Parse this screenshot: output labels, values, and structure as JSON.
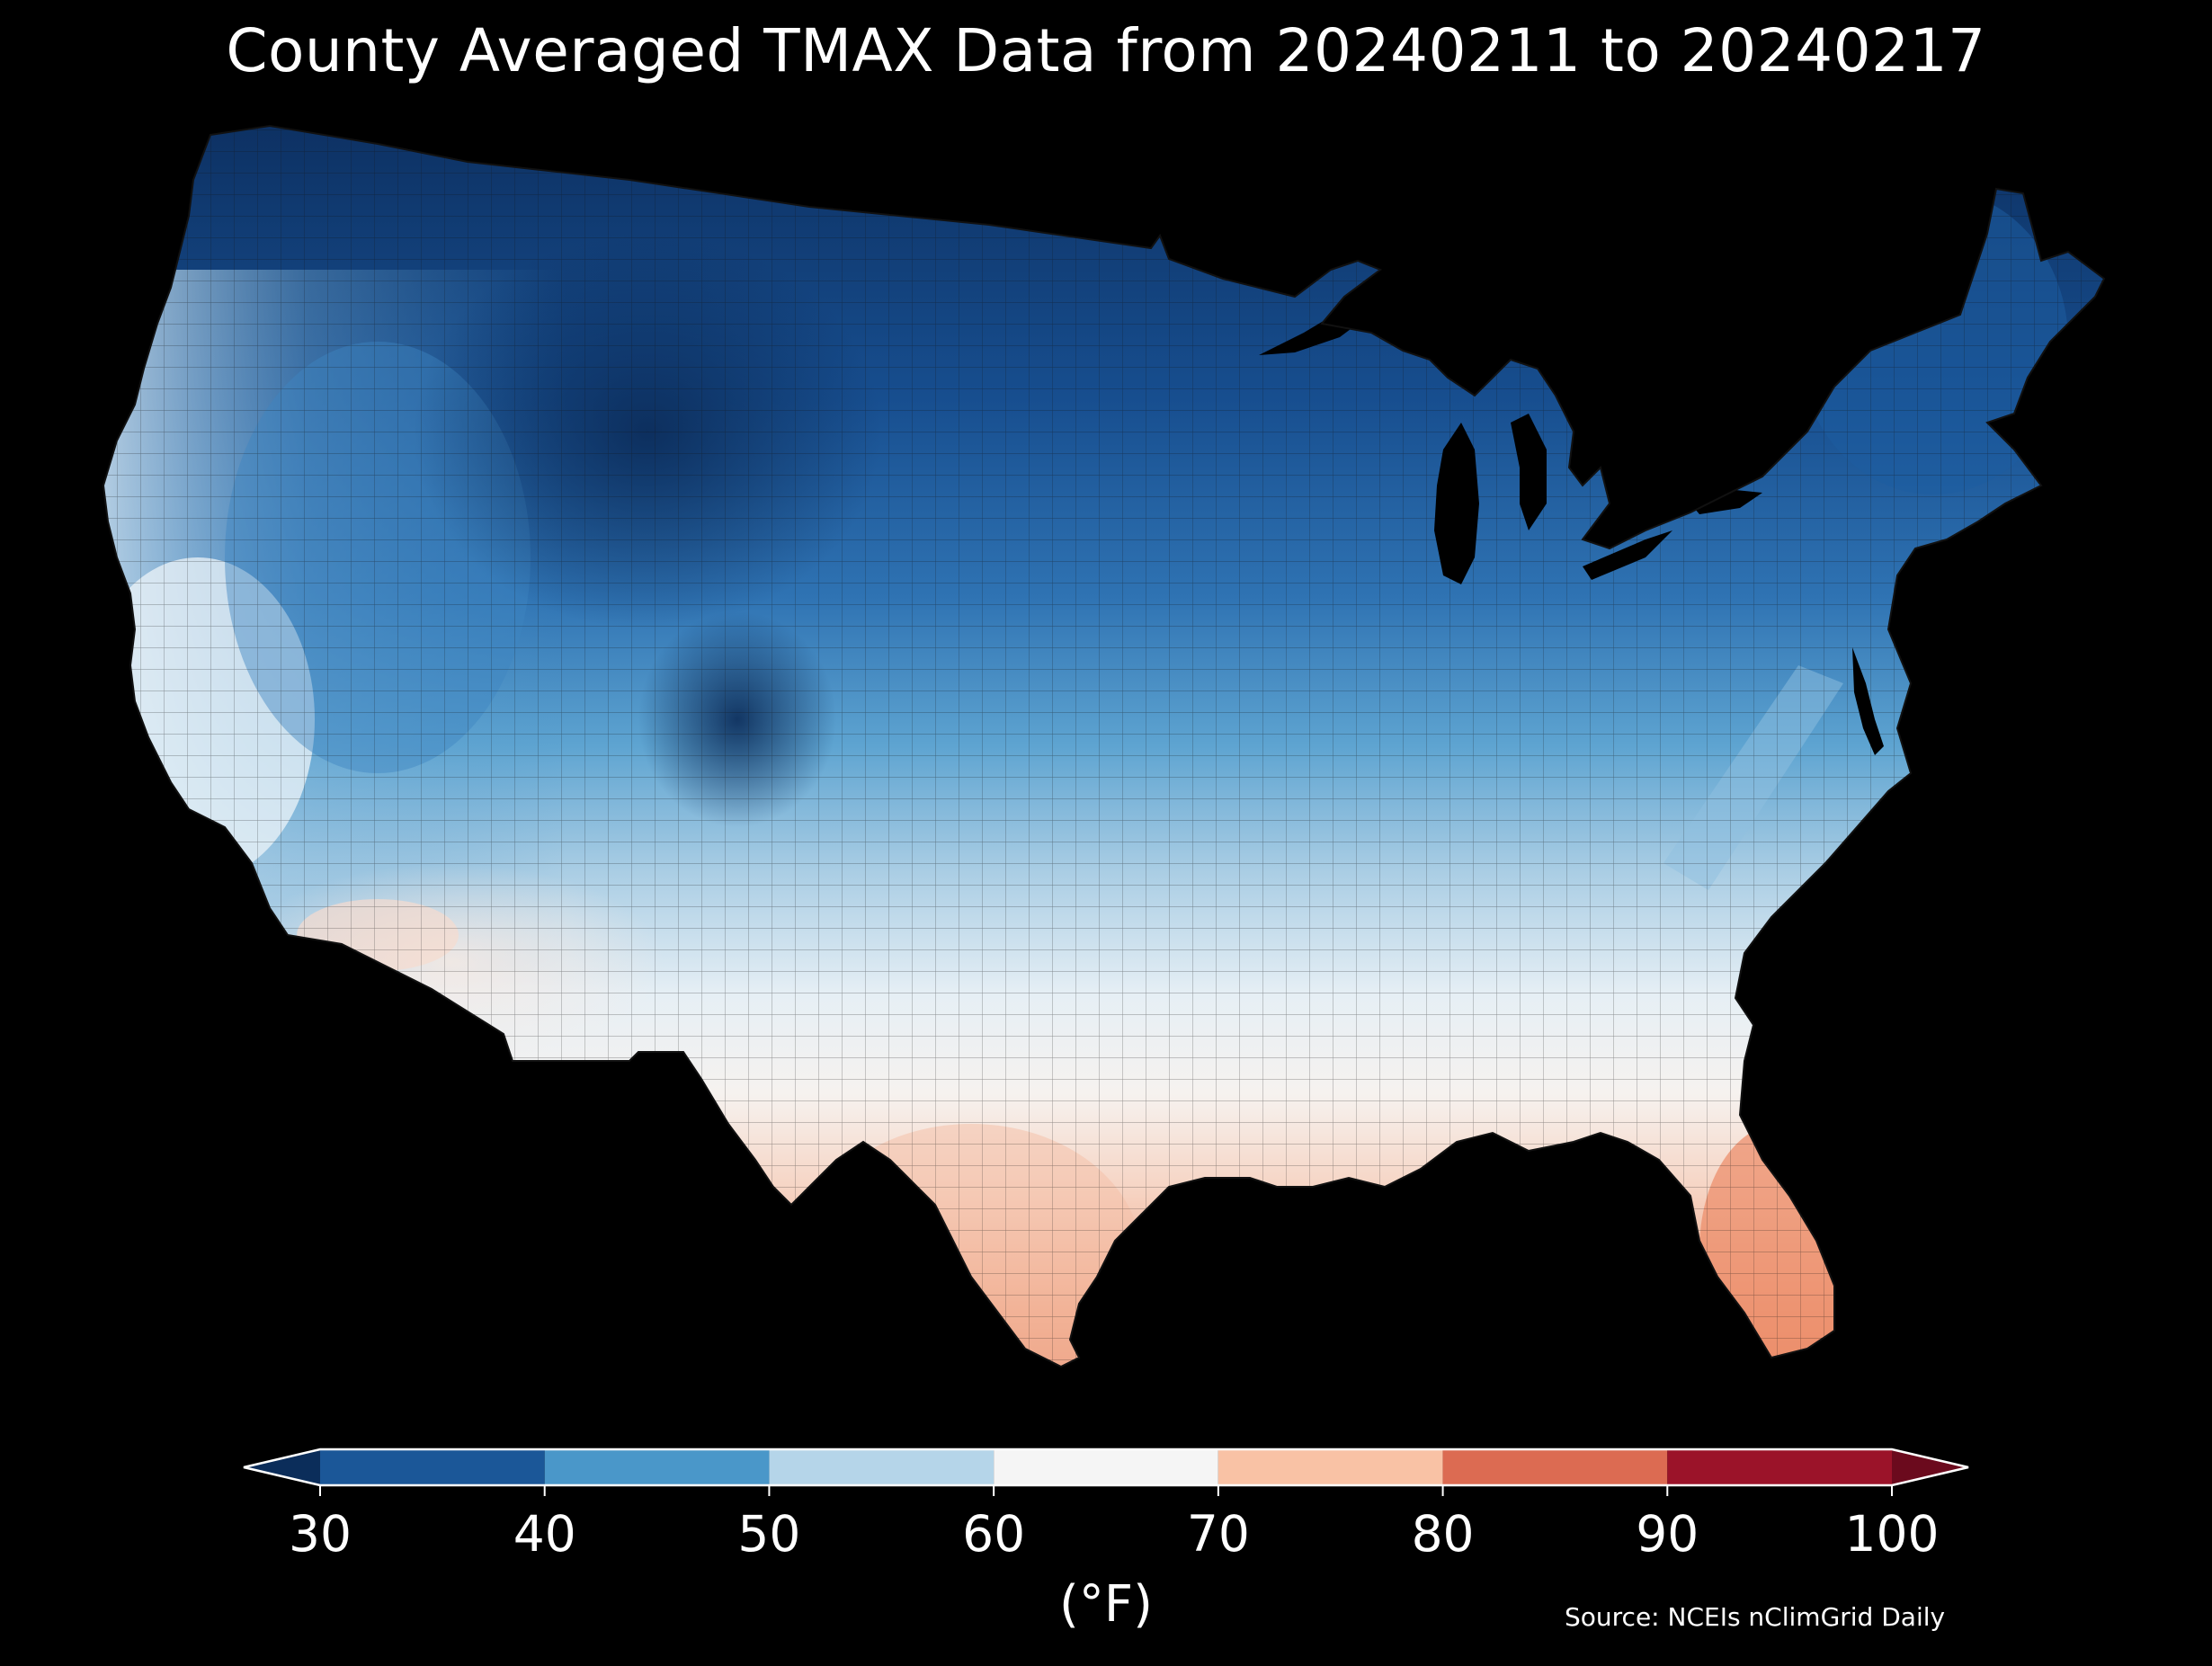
{
  "title": "County Averaged TMAX Data from 20240211 to 20240217",
  "colorbar": {
    "ticks": [
      "30",
      "40",
      "50",
      "60",
      "70",
      "80",
      "90",
      "100"
    ],
    "bins": [
      {
        "from": 30,
        "to": 40,
        "color": "#1b5798"
      },
      {
        "from": 40,
        "to": 50,
        "color": "#4a97c9"
      },
      {
        "from": 50,
        "to": 60,
        "color": "#b5d5e9"
      },
      {
        "from": 60,
        "to": 70,
        "color": "#f5f5f5"
      },
      {
        "from": 70,
        "to": 80,
        "color": "#f9c2a5"
      },
      {
        "from": 80,
        "to": 90,
        "color": "#dc6b52"
      },
      {
        "from": 90,
        "to": 100,
        "color": "#9b1329"
      }
    ],
    "under_color": "#0b2d5a",
    "over_color": "#6b0a1d",
    "extend": "both"
  },
  "units_label": "(°F)",
  "source": "Source: NCEIs nClimGrid Daily",
  "map": {
    "region": "Contiguous United States (county level)",
    "palette": {
      "coldest": "#0d3163",
      "cold": "#1d5ca0",
      "cool": "#4d95c8",
      "mild": "#a9cde4",
      "neutral": "#f3f3f3",
      "warm": "#f6d3c2",
      "warmer": "#f0a585",
      "background": "#000000"
    },
    "features": [
      "lake-michigan",
      "lake-superior",
      "chesapeake-bay",
      "gulf-of-mexico-coast",
      "florida-peninsula"
    ]
  }
}
